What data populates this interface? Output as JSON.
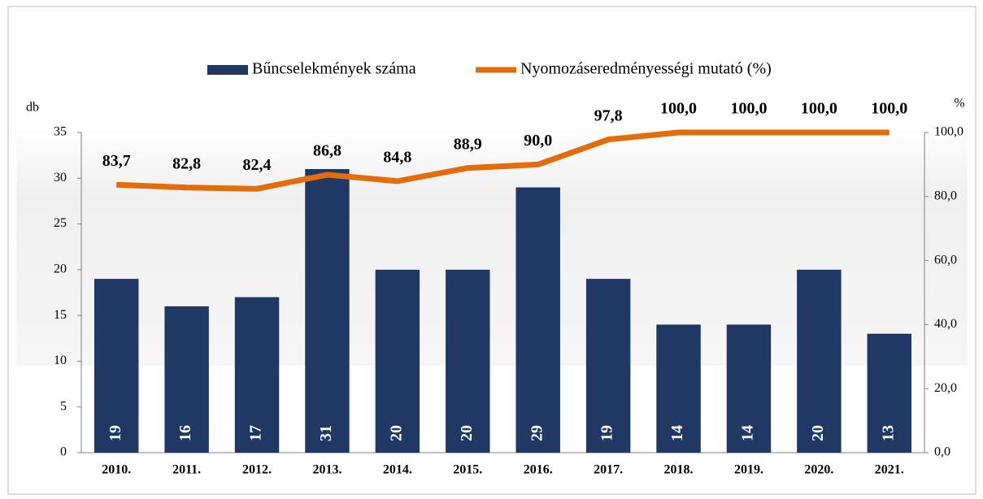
{
  "chart_data": {
    "type": "bar",
    "categories": [
      "2010.",
      "2011.",
      "2012.",
      "2013.",
      "2014.",
      "2015.",
      "2016.",
      "2017.",
      "2018.",
      "2019.",
      "2020.",
      "2021."
    ],
    "series": [
      {
        "name": "Bűncselekmények száma",
        "color": "#1f3864",
        "type": "bar",
        "values": [
          19,
          16,
          17,
          31,
          20,
          20,
          29,
          19,
          14,
          14,
          20,
          13
        ]
      },
      {
        "name": "Nyomozáseredményességi mutató (%)",
        "color": "#e46c0a",
        "type": "line",
        "axis": "y2",
        "values": [
          83.7,
          82.8,
          82.4,
          86.8,
          84.8,
          88.9,
          90.0,
          97.8,
          100.0,
          100.0,
          100.0,
          100.0
        ],
        "value_labels": [
          "83,7",
          "82,8",
          "82,4",
          "86,8",
          "84,8",
          "88,9",
          "90,0",
          "97,8",
          "100,0",
          "100,0",
          "100,0",
          "100,0"
        ]
      }
    ],
    "y_label": "db",
    "y2_label": "%",
    "ylim": [
      0,
      35
    ],
    "yticks": [
      0,
      5,
      10,
      15,
      20,
      25,
      30,
      35
    ],
    "y2lim": [
      0,
      100
    ],
    "y2ticks": [
      {
        "value": 0,
        "label": "0,0"
      },
      {
        "value": 20,
        "label": "20,0"
      },
      {
        "value": 40,
        "label": "40,0"
      },
      {
        "value": 60,
        "label": "60,0"
      },
      {
        "value": 80,
        "label": "80,0"
      },
      {
        "value": 100,
        "label": "100,0"
      }
    ],
    "legend": "top"
  }
}
